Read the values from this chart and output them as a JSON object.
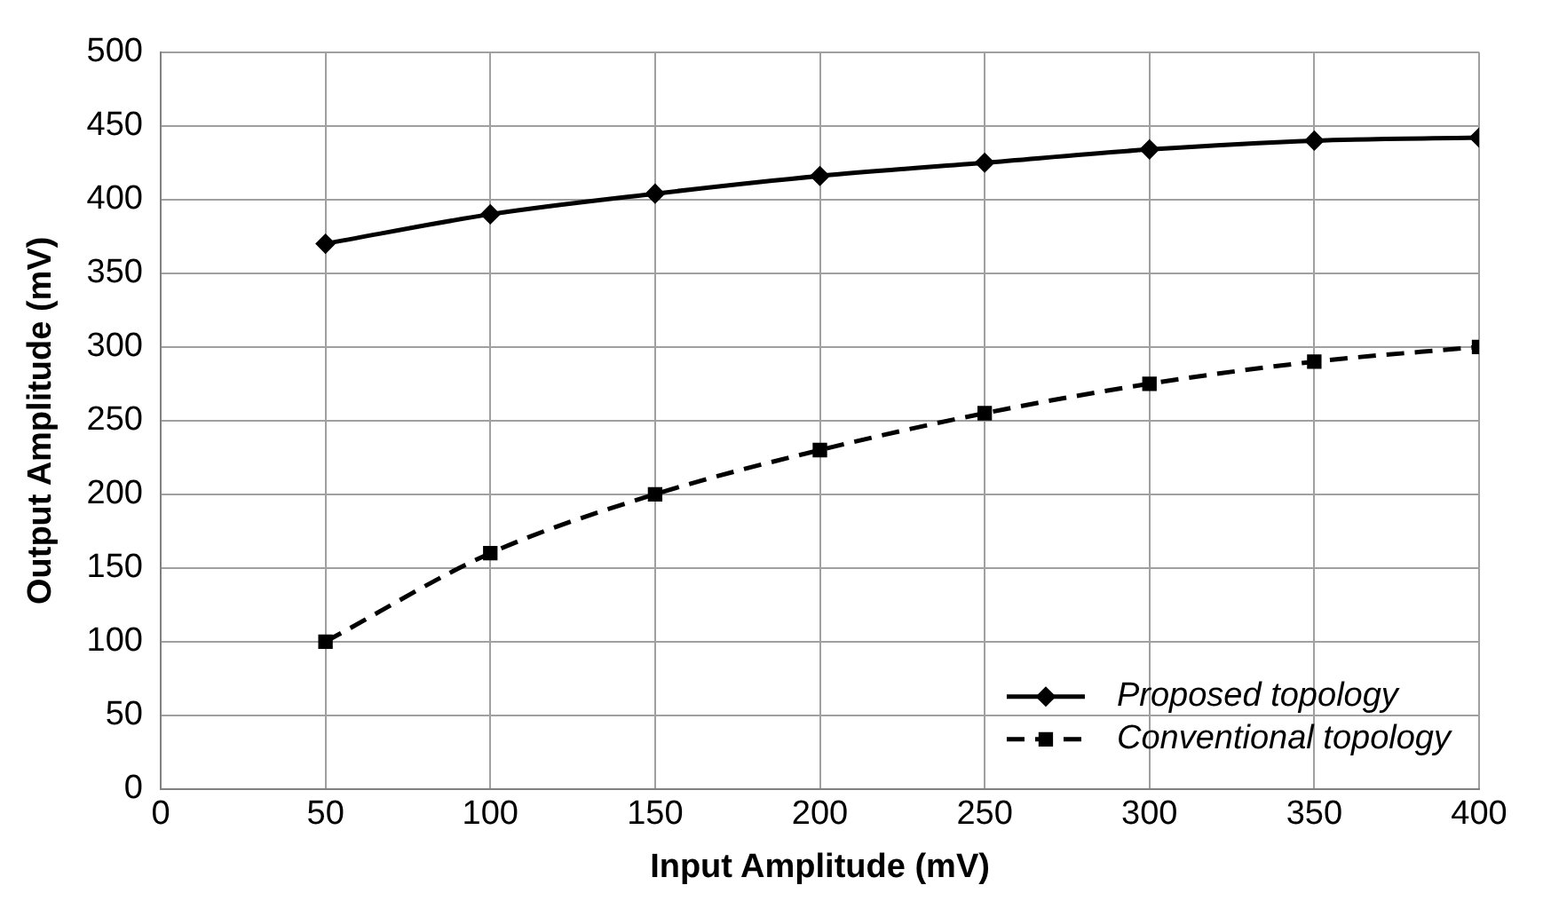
{
  "chart_data": {
    "type": "line",
    "xlabel": "Input Amplitude (mV)",
    "ylabel": "Output Amplitude (mV)",
    "x": [
      50,
      100,
      150,
      200,
      250,
      300,
      350,
      400
    ],
    "series": [
      {
        "name": "Proposed topology",
        "color": "#000000",
        "marker": "diamond",
        "line_style": "solid",
        "values": [
          370,
          390,
          404,
          416,
          425,
          434,
          440,
          442
        ]
      },
      {
        "name": "Conventional topology",
        "color": "#000000",
        "marker": "square",
        "line_style": "dashed",
        "values": [
          100,
          160,
          200,
          230,
          255,
          275,
          290,
          300
        ]
      }
    ],
    "xlim": [
      0,
      400
    ],
    "xticks": [
      0,
      50,
      100,
      150,
      200,
      250,
      300,
      350,
      400
    ],
    "ylim": [
      0,
      500
    ],
    "yticks": [
      0,
      50,
      100,
      150,
      200,
      250,
      300,
      350,
      400,
      450,
      500
    ],
    "grid": true,
    "legend": "bottom right"
  }
}
